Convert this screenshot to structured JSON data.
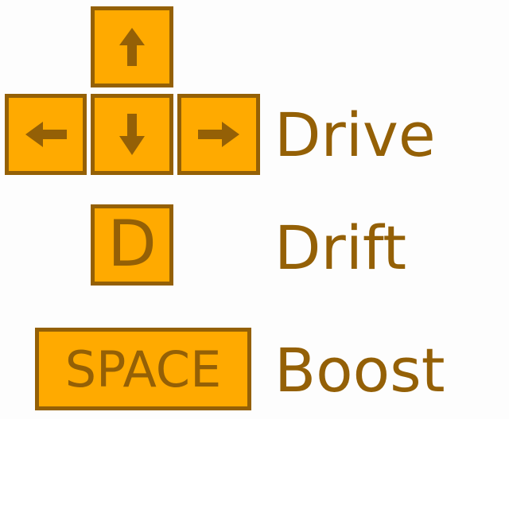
{
  "colors": {
    "key_fill": "#ffaa00",
    "key_border": "#946006",
    "text": "#946006",
    "background": "#ffffff"
  },
  "controls": {
    "drive": {
      "keys": [
        "arrow-up-icon",
        "arrow-left-icon",
        "arrow-down-icon",
        "arrow-right-icon"
      ],
      "label": "Drive"
    },
    "drift": {
      "key": "D",
      "label": "Drift"
    },
    "boost": {
      "key": "SPACE",
      "label": "Boost"
    }
  }
}
